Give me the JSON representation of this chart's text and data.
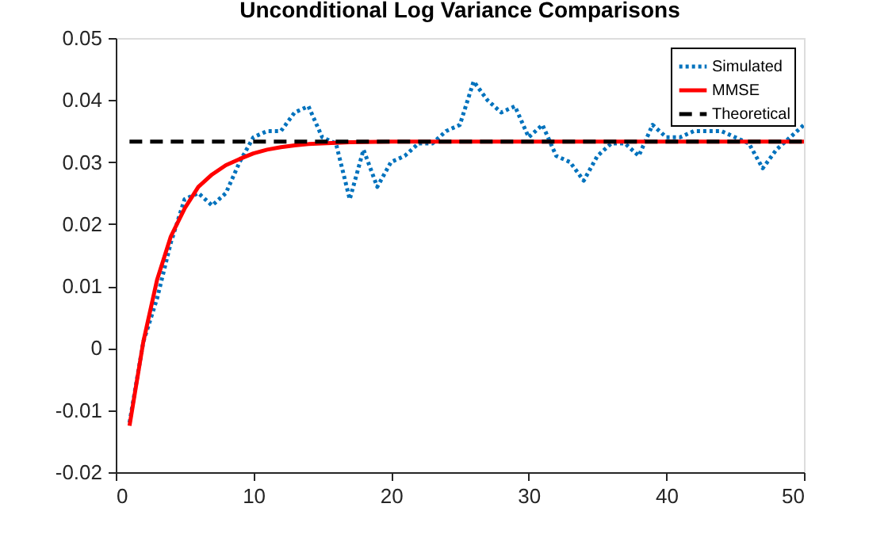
{
  "chart_data": {
    "type": "line",
    "title": "Unconditional Log Variance Comparisons",
    "xlim": [
      0,
      50
    ],
    "xticks": [
      0,
      10,
      20,
      30,
      40,
      50
    ],
    "ylim": [
      -0.02,
      0.05
    ],
    "yticks": [
      -0.02,
      -0.01,
      0,
      0.01,
      0.02,
      0.03,
      0.04,
      0.05
    ],
    "grid": false,
    "legend": "top right",
    "series": [
      {
        "name": "Simulated",
        "color": "#0072bd",
        "line_style": "dotted",
        "x": [
          1,
          2,
          3,
          4,
          5,
          6,
          7,
          8,
          9,
          10,
          11,
          12,
          13,
          14,
          15,
          16,
          17,
          18,
          19,
          20,
          21,
          22,
          23,
          24,
          25,
          26,
          27,
          28,
          29,
          30,
          31,
          32,
          33,
          34,
          35,
          36,
          37,
          38,
          39,
          40,
          41,
          42,
          43,
          44,
          45,
          46,
          47,
          48,
          49,
          50
        ],
        "values": [
          -0.012,
          0.001,
          0.008,
          0.017,
          0.024,
          0.025,
          0.023,
          0.025,
          0.03,
          0.034,
          0.035,
          0.035,
          0.038,
          0.039,
          0.034,
          0.033,
          0.024,
          0.032,
          0.026,
          0.03,
          0.031,
          0.033,
          0.033,
          0.035,
          0.036,
          0.043,
          0.04,
          0.038,
          0.039,
          0.034,
          0.036,
          0.031,
          0.03,
          0.027,
          0.031,
          0.033,
          0.033,
          0.031,
          0.036,
          0.034,
          0.034,
          0.035,
          0.035,
          0.035,
          0.034,
          0.033,
          0.029,
          0.032,
          0.034,
          0.036
        ]
      },
      {
        "name": "MMSE",
        "color": "#ff0000",
        "line_style": "solid",
        "x": [
          1,
          2,
          3,
          4,
          5,
          6,
          7,
          8,
          9,
          10,
          11,
          12,
          13,
          14,
          15,
          17,
          20,
          25,
          30,
          40,
          50
        ],
        "values": [
          -0.0125,
          0.001,
          0.011,
          0.018,
          0.0225,
          0.026,
          0.028,
          0.0295,
          0.0305,
          0.0314,
          0.032,
          0.0324,
          0.0327,
          0.0329,
          0.033,
          0.0332,
          0.0333,
          0.0333,
          0.0333,
          0.0333,
          0.0333
        ]
      },
      {
        "name": "Theoretical",
        "color": "#000000",
        "line_style": "dashed",
        "x": [
          1,
          50
        ],
        "values": [
          0.0333,
          0.0333
        ]
      }
    ]
  }
}
